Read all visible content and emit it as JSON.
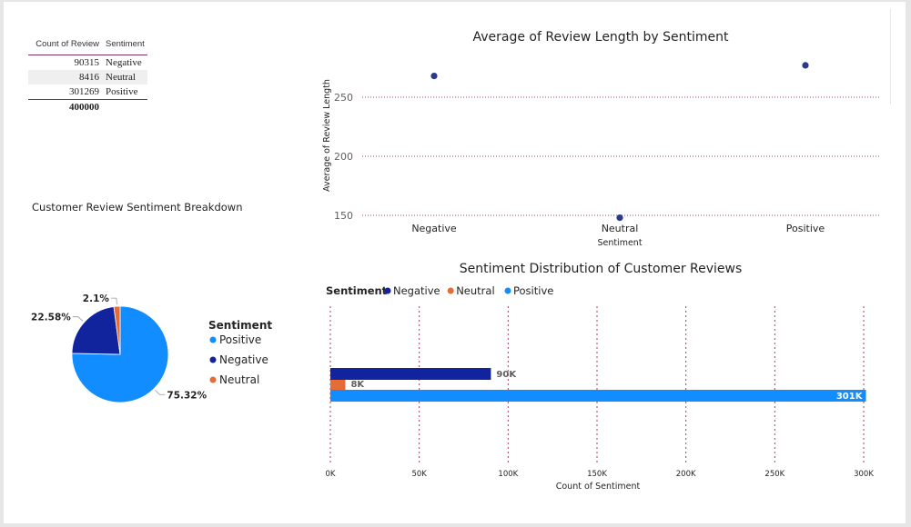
{
  "matrix": {
    "headers": {
      "count": "Count of Review",
      "sentiment": "Sentiment"
    },
    "rows": [
      {
        "count": "90315",
        "sentiment": "Negative"
      },
      {
        "count": "8416",
        "sentiment": "Neutral"
      },
      {
        "count": "301269",
        "sentiment": "Positive"
      }
    ],
    "total": "400000"
  },
  "colors": {
    "positive": "#118dff",
    "negative": "#12239e",
    "neutral": "#e66c37",
    "marker": "#2b3a8c"
  },
  "chart_data": [
    {
      "type": "scatter",
      "title": "Average of Review Length by Sentiment",
      "xlabel": "Sentiment",
      "ylabel": "Average of Review Length",
      "categories": [
        "Negative",
        "Neutral",
        "Positive"
      ],
      "values": [
        268,
        148,
        277
      ],
      "yticks": [
        150,
        200,
        250
      ],
      "ylim": [
        145,
        280
      ],
      "grid": true
    },
    {
      "type": "pie",
      "title": "Customer Review Sentiment Breakdown",
      "legend_title": "Sentiment",
      "legend_position": "right",
      "legend": [
        "Positive",
        "Negative",
        "Neutral"
      ],
      "slices": [
        {
          "label": "Positive",
          "value": 75.32,
          "text": "75.32%"
        },
        {
          "label": "Negative",
          "value": 22.58,
          "text": "22.58%"
        },
        {
          "label": "Neutral",
          "value": 2.1,
          "text": "2.1%"
        }
      ]
    },
    {
      "type": "bar",
      "orientation": "horizontal",
      "title": "Sentiment Distribution of Customer Reviews",
      "legend_title": "Sentiment",
      "legend_position": "top-left",
      "xlabel": "Count of Sentiment",
      "series": [
        {
          "name": "Negative",
          "value": 90315,
          "label": "90K"
        },
        {
          "name": "Neutral",
          "value": 8416,
          "label": "8K"
        },
        {
          "name": "Positive",
          "value": 301269,
          "label": "301K"
        }
      ],
      "xticks": [
        "0K",
        "50K",
        "100K",
        "150K",
        "200K",
        "250K",
        "300K"
      ],
      "xlim": [
        0,
        300000
      ],
      "grid": true
    }
  ]
}
